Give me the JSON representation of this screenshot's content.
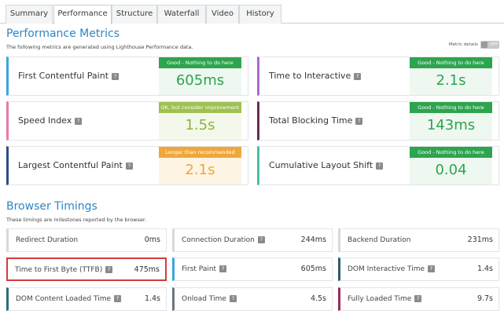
{
  "tabs": [
    {
      "label": "Summary",
      "active": false
    },
    {
      "label": "Performance",
      "active": true
    },
    {
      "label": "Structure",
      "active": false
    },
    {
      "label": "Waterfall",
      "active": false
    },
    {
      "label": "Video",
      "active": false
    },
    {
      "label": "History",
      "active": false
    }
  ],
  "performance": {
    "title": "Performance Metrics",
    "subtitle": "The following metrics are generated using Lighthouse Performance data.",
    "toggle": {
      "label": "Metric details",
      "state": "OFF"
    }
  },
  "metrics": [
    {
      "name": "First Contentful Paint",
      "status": "Good - Nothing to do here",
      "value": "605ms",
      "accent": "#3aa7dc",
      "status_color": "#2da44e",
      "value_color": "#2da44e"
    },
    {
      "name": "Time to Interactive",
      "status": "Good - Nothing to do here",
      "value": "2.1s",
      "accent": "#a86ad0",
      "status_color": "#2da44e",
      "value_color": "#2da44e"
    },
    {
      "name": "Speed Index",
      "status": "OK, but consider improvement",
      "value": "1.5s",
      "accent": "#e77aa8",
      "status_color": "#9ec14f",
      "value_color": "#8cb43a"
    },
    {
      "name": "Total Blocking Time",
      "status": "Good - Nothing to do here",
      "value": "143ms",
      "accent": "#6b2c56",
      "status_color": "#2da44e",
      "value_color": "#2da44e"
    },
    {
      "name": "Largest Contentful Paint",
      "status": "Longer than recommended",
      "value": "2.1s",
      "accent": "#2e4f86",
      "status_color": "#f0a63a",
      "value_color": "#f0a63a"
    },
    {
      "name": "Cumulative Layout Shift",
      "status": "Good - Nothing to do here",
      "value": "0.04",
      "accent": "#45c0a6",
      "status_color": "#2da44e",
      "value_color": "#2da44e"
    }
  ],
  "browser": {
    "title": "Browser Timings",
    "subtitle": "These timings are milestones reported by the browser."
  },
  "timings": [
    {
      "name": "Redirect Duration",
      "value": "0ms",
      "accent": "#d6d9dc"
    },
    {
      "name": "Connection Duration",
      "value": "244ms",
      "accent": "#d6d9dc"
    },
    {
      "name": "Backend Duration",
      "value": "231ms",
      "accent": "#d6d9dc"
    },
    {
      "name": "Time to First Byte (TTFB)",
      "value": "475ms",
      "accent": "#d23c3c"
    },
    {
      "name": "First Paint",
      "value": "605ms",
      "accent": "#3aa7dc"
    },
    {
      "name": "DOM Interactive Time",
      "value": "1.4s",
      "accent": "#2d5a73"
    },
    {
      "name": "DOM Content Loaded Time",
      "value": "1.4s",
      "accent": "#2a6f78"
    },
    {
      "name": "Onload Time",
      "value": "4.5s",
      "accent": "#6b7680"
    },
    {
      "name": "Fully Loaded Time",
      "value": "9.7s",
      "accent": "#9b2a5a"
    }
  ]
}
